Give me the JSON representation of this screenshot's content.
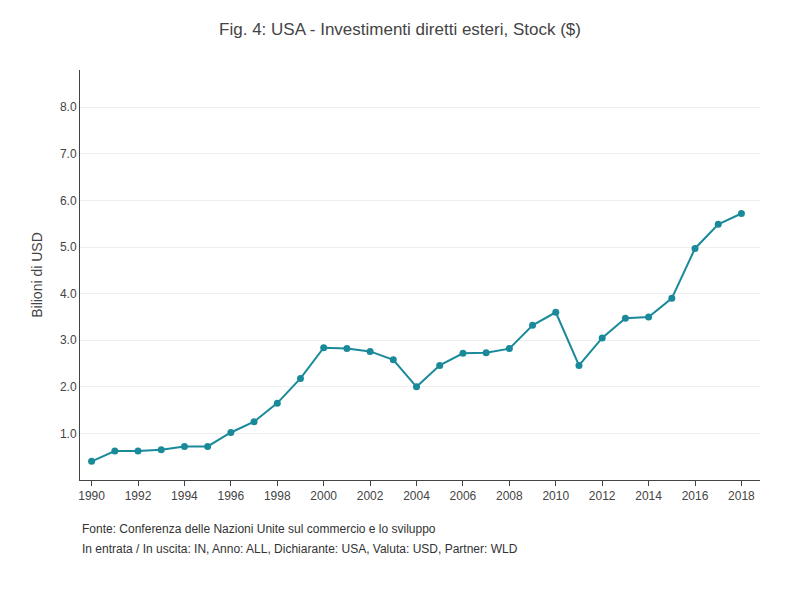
{
  "chart_data": {
    "type": "line",
    "title": "Fig. 4: USA - Investimenti diretti esteri, Stock ($)",
    "ylabel": "Bilioni di USD",
    "annotations": [
      "Fonte: Conferenza delle Nazioni Unite sul commercio e lo sviluppo",
      "In entrata / In uscita: IN, Anno: ALL, Dichiarante: USA, Valuta: USD, Partner: WLD"
    ],
    "x": [
      1990,
      1991,
      1992,
      1993,
      1994,
      1995,
      1996,
      1997,
      1998,
      1999,
      2000,
      2001,
      2002,
      2003,
      2004,
      2005,
      2006,
      2007,
      2008,
      2009,
      2010,
      2011,
      2012,
      2013,
      2014,
      2015,
      2016,
      2017,
      2018
    ],
    "values": [
      0.4,
      0.62,
      0.62,
      0.65,
      0.72,
      0.72,
      1.02,
      1.25,
      1.65,
      2.18,
      2.84,
      2.82,
      2.76,
      2.58,
      2.0,
      2.46,
      2.72,
      2.73,
      2.82,
      3.32,
      3.6,
      2.46,
      3.05,
      3.47,
      3.5,
      3.9,
      4.97,
      5.49,
      5.72
    ],
    "color": "#1a8a9a",
    "marker": "circle",
    "line_style": "solid",
    "xlim": [
      1989.5,
      2018.8
    ],
    "xticks": [
      1990,
      1992,
      1994,
      1996,
      1998,
      2000,
      2002,
      2004,
      2006,
      2008,
      2010,
      2012,
      2014,
      2016,
      2018
    ],
    "ylim": [
      0,
      8.8
    ],
    "yticks": [
      {
        "value": 1.0,
        "label": "1.0"
      },
      {
        "value": 2.0,
        "label": "2.0"
      },
      {
        "value": 3.0,
        "label": "3.0"
      },
      {
        "value": 4.0,
        "label": "4.0"
      },
      {
        "value": 5.0,
        "label": "5.0"
      },
      {
        "value": 6.0,
        "label": "6.0"
      },
      {
        "value": 7.0,
        "label": "7.0"
      },
      {
        "value": 8.0,
        "label": "8.0"
      }
    ],
    "grid": "y"
  }
}
